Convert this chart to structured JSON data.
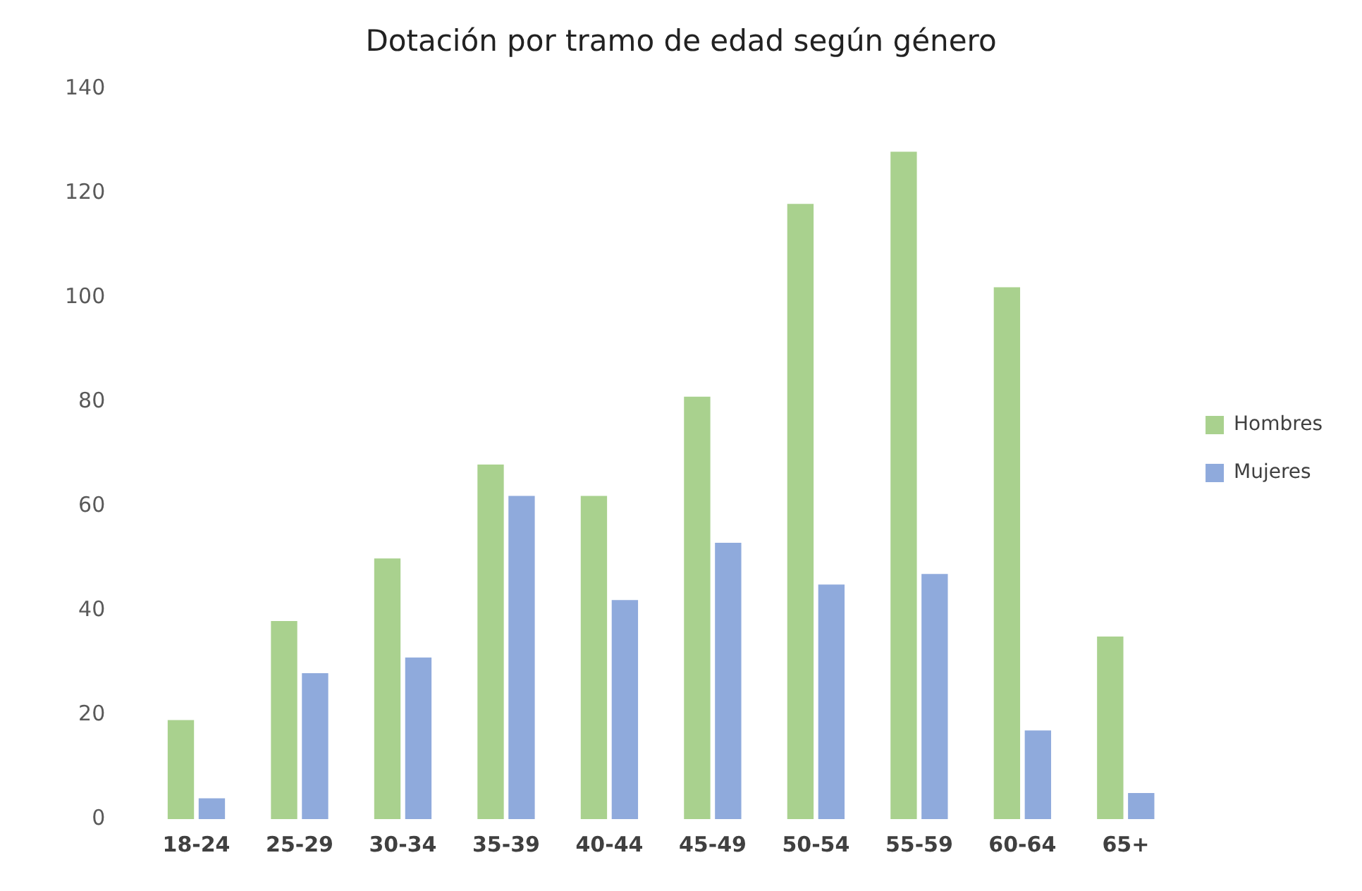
{
  "chart_data": {
    "type": "bar",
    "title": "Dotación por tramo de edad según género",
    "categories": [
      "18-24",
      "25-29",
      "30-34",
      "35-39",
      "40-44",
      "45-49",
      "50-54",
      "55-59",
      "60-64",
      "65+"
    ],
    "series": [
      {
        "name": "Hombres",
        "color": "#a9d18e",
        "values": [
          19,
          38,
          50,
          68,
          62,
          81,
          118,
          128,
          102,
          35
        ]
      },
      {
        "name": "Mujeres",
        "color": "#8faadc",
        "values": [
          4,
          28,
          31,
          62,
          42,
          53,
          45,
          47,
          17,
          5
        ]
      }
    ],
    "ylim": [
      0,
      140
    ],
    "yticks": [
      0,
      20,
      40,
      60,
      80,
      100,
      120,
      140
    ],
    "grid": false,
    "legend": "right"
  }
}
